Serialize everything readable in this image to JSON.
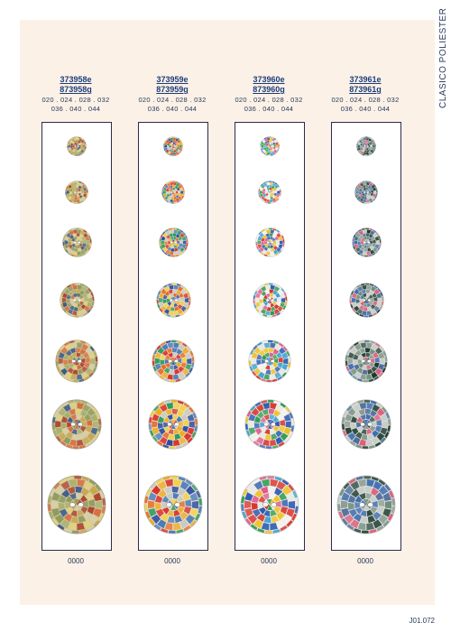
{
  "side_label": "CLASICO POLIESTER",
  "footer": "J01.072",
  "columns": [
    {
      "code_e": "373958e",
      "code_g": "873958g",
      "sizes_line1": "020 . 024 . 028 . 032",
      "sizes_line2": "036 . 040 . 044",
      "ref": "0000",
      "palette": [
        "#c8a64a",
        "#a8b06a",
        "#d86a3a",
        "#8e9a5a",
        "#e2d27a",
        "#3a5a8a",
        "#b0442e",
        "#d9cfa6"
      ],
      "rim": "#cfc8a8"
    },
    {
      "code_e": "373959e",
      "code_g": "873959g",
      "sizes_line1": "020 . 024 . 028 . 032",
      "sizes_line2": "036 . 040 . 044",
      "ref": "0000",
      "palette": [
        "#d8322a",
        "#f0a818",
        "#2a4aa0",
        "#2a9a5a",
        "#e86a20",
        "#c8c8c0",
        "#f2d040",
        "#4a7ab8"
      ],
      "rim": "#e8e4d8"
    },
    {
      "code_e": "373960e",
      "code_g": "873960g",
      "sizes_line1": "020 . 024 . 028 . 032",
      "sizes_line2": "036 . 040 . 044",
      "ref": "0000",
      "palette": [
        "#2a9a4a",
        "#e8e8e4",
        "#d83028",
        "#2a5ab0",
        "#f0c020",
        "#e05a8a",
        "#3aa0d0",
        "#f4f2ee"
      ],
      "rim": "#efeeea"
    },
    {
      "code_e": "373961e",
      "code_g": "873961g",
      "sizes_line1": "020 . 024 . 028 . 032",
      "sizes_line2": "036 . 040 . 044",
      "ref": "0000",
      "palette": [
        "#1e3a2e",
        "#e05a78",
        "#4a6a9a",
        "#6a8a7a",
        "#c8ccc8",
        "#2e4a3e",
        "#3a6ab0",
        "#8a9a8e"
      ],
      "rim": "#dfe2de"
    }
  ]
}
